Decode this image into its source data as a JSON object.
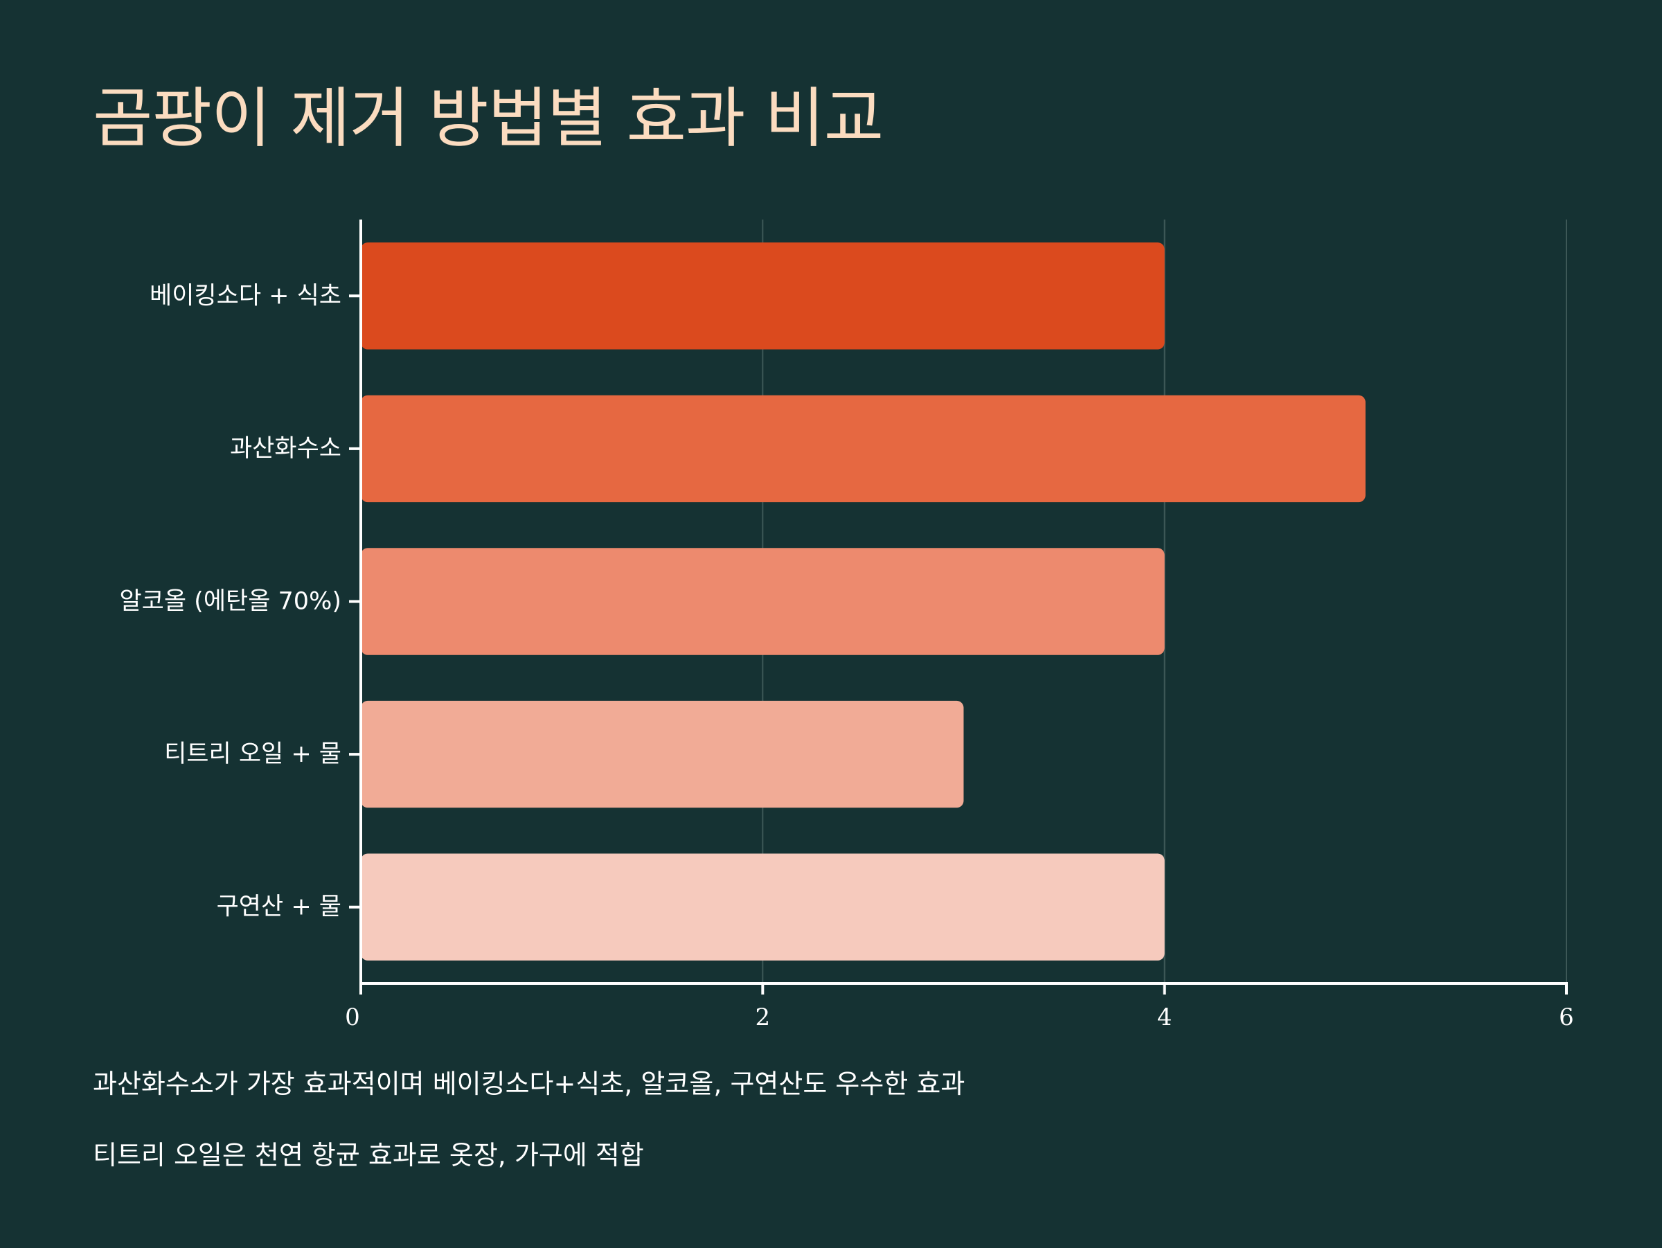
{
  "chart_data": {
    "type": "bar",
    "orientation": "horizontal",
    "title": "곰팡이 제거 방법별 효과 비교",
    "categories": [
      "베이킹소다 + 식초",
      "과산화수소",
      "알코올 (에탄올 70%)",
      "티트리 오일 + 물",
      "구연산 + 물"
    ],
    "values": [
      4,
      5,
      4,
      3,
      4
    ],
    "colors": [
      "#db4a1e",
      "#e66841",
      "#ed8a6e",
      "#f1ab96",
      "#f6cabd"
    ],
    "xlim": [
      0,
      6
    ],
    "xticks": [
      "0",
      "2",
      "4",
      "6"
    ],
    "grid": true,
    "xlabel": "",
    "ylabel": ""
  },
  "notes": [
    "과산화수소가 가장 효과적이며 베이킹소다+식초, 알코올, 구연산도 우수한 효과",
    "티트리 오일은 천연 항균 효과로 옷장, 가구에 적합"
  ],
  "colors": {
    "background": "#153233",
    "title": "#fbdcc0",
    "axis": "#ffffff",
    "grid": "#3d5857",
    "text": "#ffffff"
  }
}
